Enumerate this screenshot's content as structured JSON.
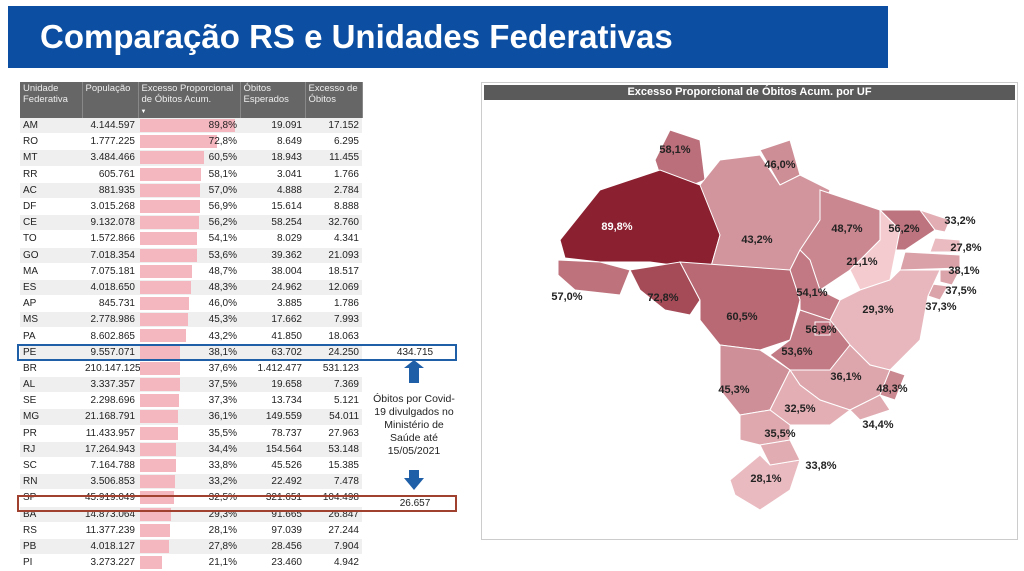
{
  "header": {
    "title": "Comparação RS e Unidades Federativas"
  },
  "table": {
    "columns": [
      "Unidade Federativa",
      "População",
      "Excesso Proporcional de Óbitos Acum.",
      "Óbitos Esperados",
      "Excesso de Óbitos"
    ],
    "rows": [
      [
        "AM",
        "4.144.597",
        "89,8%",
        "19.091",
        "17.152"
      ],
      [
        "RO",
        "1.777.225",
        "72,8%",
        "8.649",
        "6.295"
      ],
      [
        "MT",
        "3.484.466",
        "60,5%",
        "18.943",
        "11.455"
      ],
      [
        "RR",
        "605.761",
        "58,1%",
        "3.041",
        "1.766"
      ],
      [
        "AC",
        "881.935",
        "57,0%",
        "4.888",
        "2.784"
      ],
      [
        "DF",
        "3.015.268",
        "56,9%",
        "15.614",
        "8.888"
      ],
      [
        "CE",
        "9.132.078",
        "56,2%",
        "58.254",
        "32.760"
      ],
      [
        "TO",
        "1.572.866",
        "54,1%",
        "8.029",
        "4.341"
      ],
      [
        "GO",
        "7.018.354",
        "53,6%",
        "39.362",
        "21.093"
      ],
      [
        "MA",
        "7.075.181",
        "48,7%",
        "38.004",
        "18.517"
      ],
      [
        "ES",
        "4.018.650",
        "48,3%",
        "24.962",
        "12.069"
      ],
      [
        "AP",
        "845.731",
        "46,0%",
        "3.885",
        "1.786"
      ],
      [
        "MS",
        "2.778.986",
        "45,3%",
        "17.662",
        "7.993"
      ],
      [
        "PA",
        "8.602.865",
        "43,2%",
        "41.850",
        "18.063"
      ],
      [
        "PE",
        "9.557.071",
        "38,1%",
        "63.702",
        "24.250"
      ],
      [
        "BR",
        "210.147.125",
        "37,6%",
        "1.412.477",
        "531.123"
      ],
      [
        "AL",
        "3.337.357",
        "37,5%",
        "19.658",
        "7.369"
      ],
      [
        "SE",
        "2.298.696",
        "37,3%",
        "13.734",
        "5.121"
      ],
      [
        "MG",
        "21.168.791",
        "36,1%",
        "149.559",
        "54.011"
      ],
      [
        "PR",
        "11.433.957",
        "35,5%",
        "78.737",
        "27.963"
      ],
      [
        "RJ",
        "17.264.943",
        "34,4%",
        "154.564",
        "53.148"
      ],
      [
        "SC",
        "7.164.788",
        "33,8%",
        "45.526",
        "15.385"
      ],
      [
        "RN",
        "3.506.853",
        "33,2%",
        "22.492",
        "7.478"
      ],
      [
        "SP",
        "45.919.049",
        "32,5%",
        "321.651",
        "104.498"
      ],
      [
        "BA",
        "14.873.064",
        "29,3%",
        "91.665",
        "26.847"
      ],
      [
        "RS",
        "11.377.239",
        "28,1%",
        "97.039",
        "27.244"
      ],
      [
        "PB",
        "4.018.127",
        "27,8%",
        "28.456",
        "7.904"
      ],
      [
        "PI",
        "3.273.227",
        "21,1%",
        "23.460",
        "4.942"
      ]
    ]
  },
  "annotations": {
    "br_deaths": "434.715",
    "rs_deaths": "26.657",
    "note_lines": [
      "Óbitos por Covid-",
      "19 divulgados no",
      "Ministério de",
      "Saúde até",
      "15/05/2021"
    ]
  },
  "map": {
    "title": "Excesso Proporcional de Óbitos Acum. por UF",
    "labels": [
      "58,1%",
      "46,0%",
      "89,8%",
      "43,2%",
      "48,7%",
      "56,2%",
      "33,2%",
      "27,8%",
      "21,1%",
      "38,1%",
      "37,5%",
      "37,3%",
      "57,0%",
      "72,8%",
      "29,3%",
      "54,1%",
      "60,5%",
      "53,6%",
      "56,9%",
      "36,1%",
      "48,3%",
      "45,3%",
      "32,5%",
      "35,5%",
      "34,4%",
      "28,1%",
      "33,8%"
    ]
  }
}
